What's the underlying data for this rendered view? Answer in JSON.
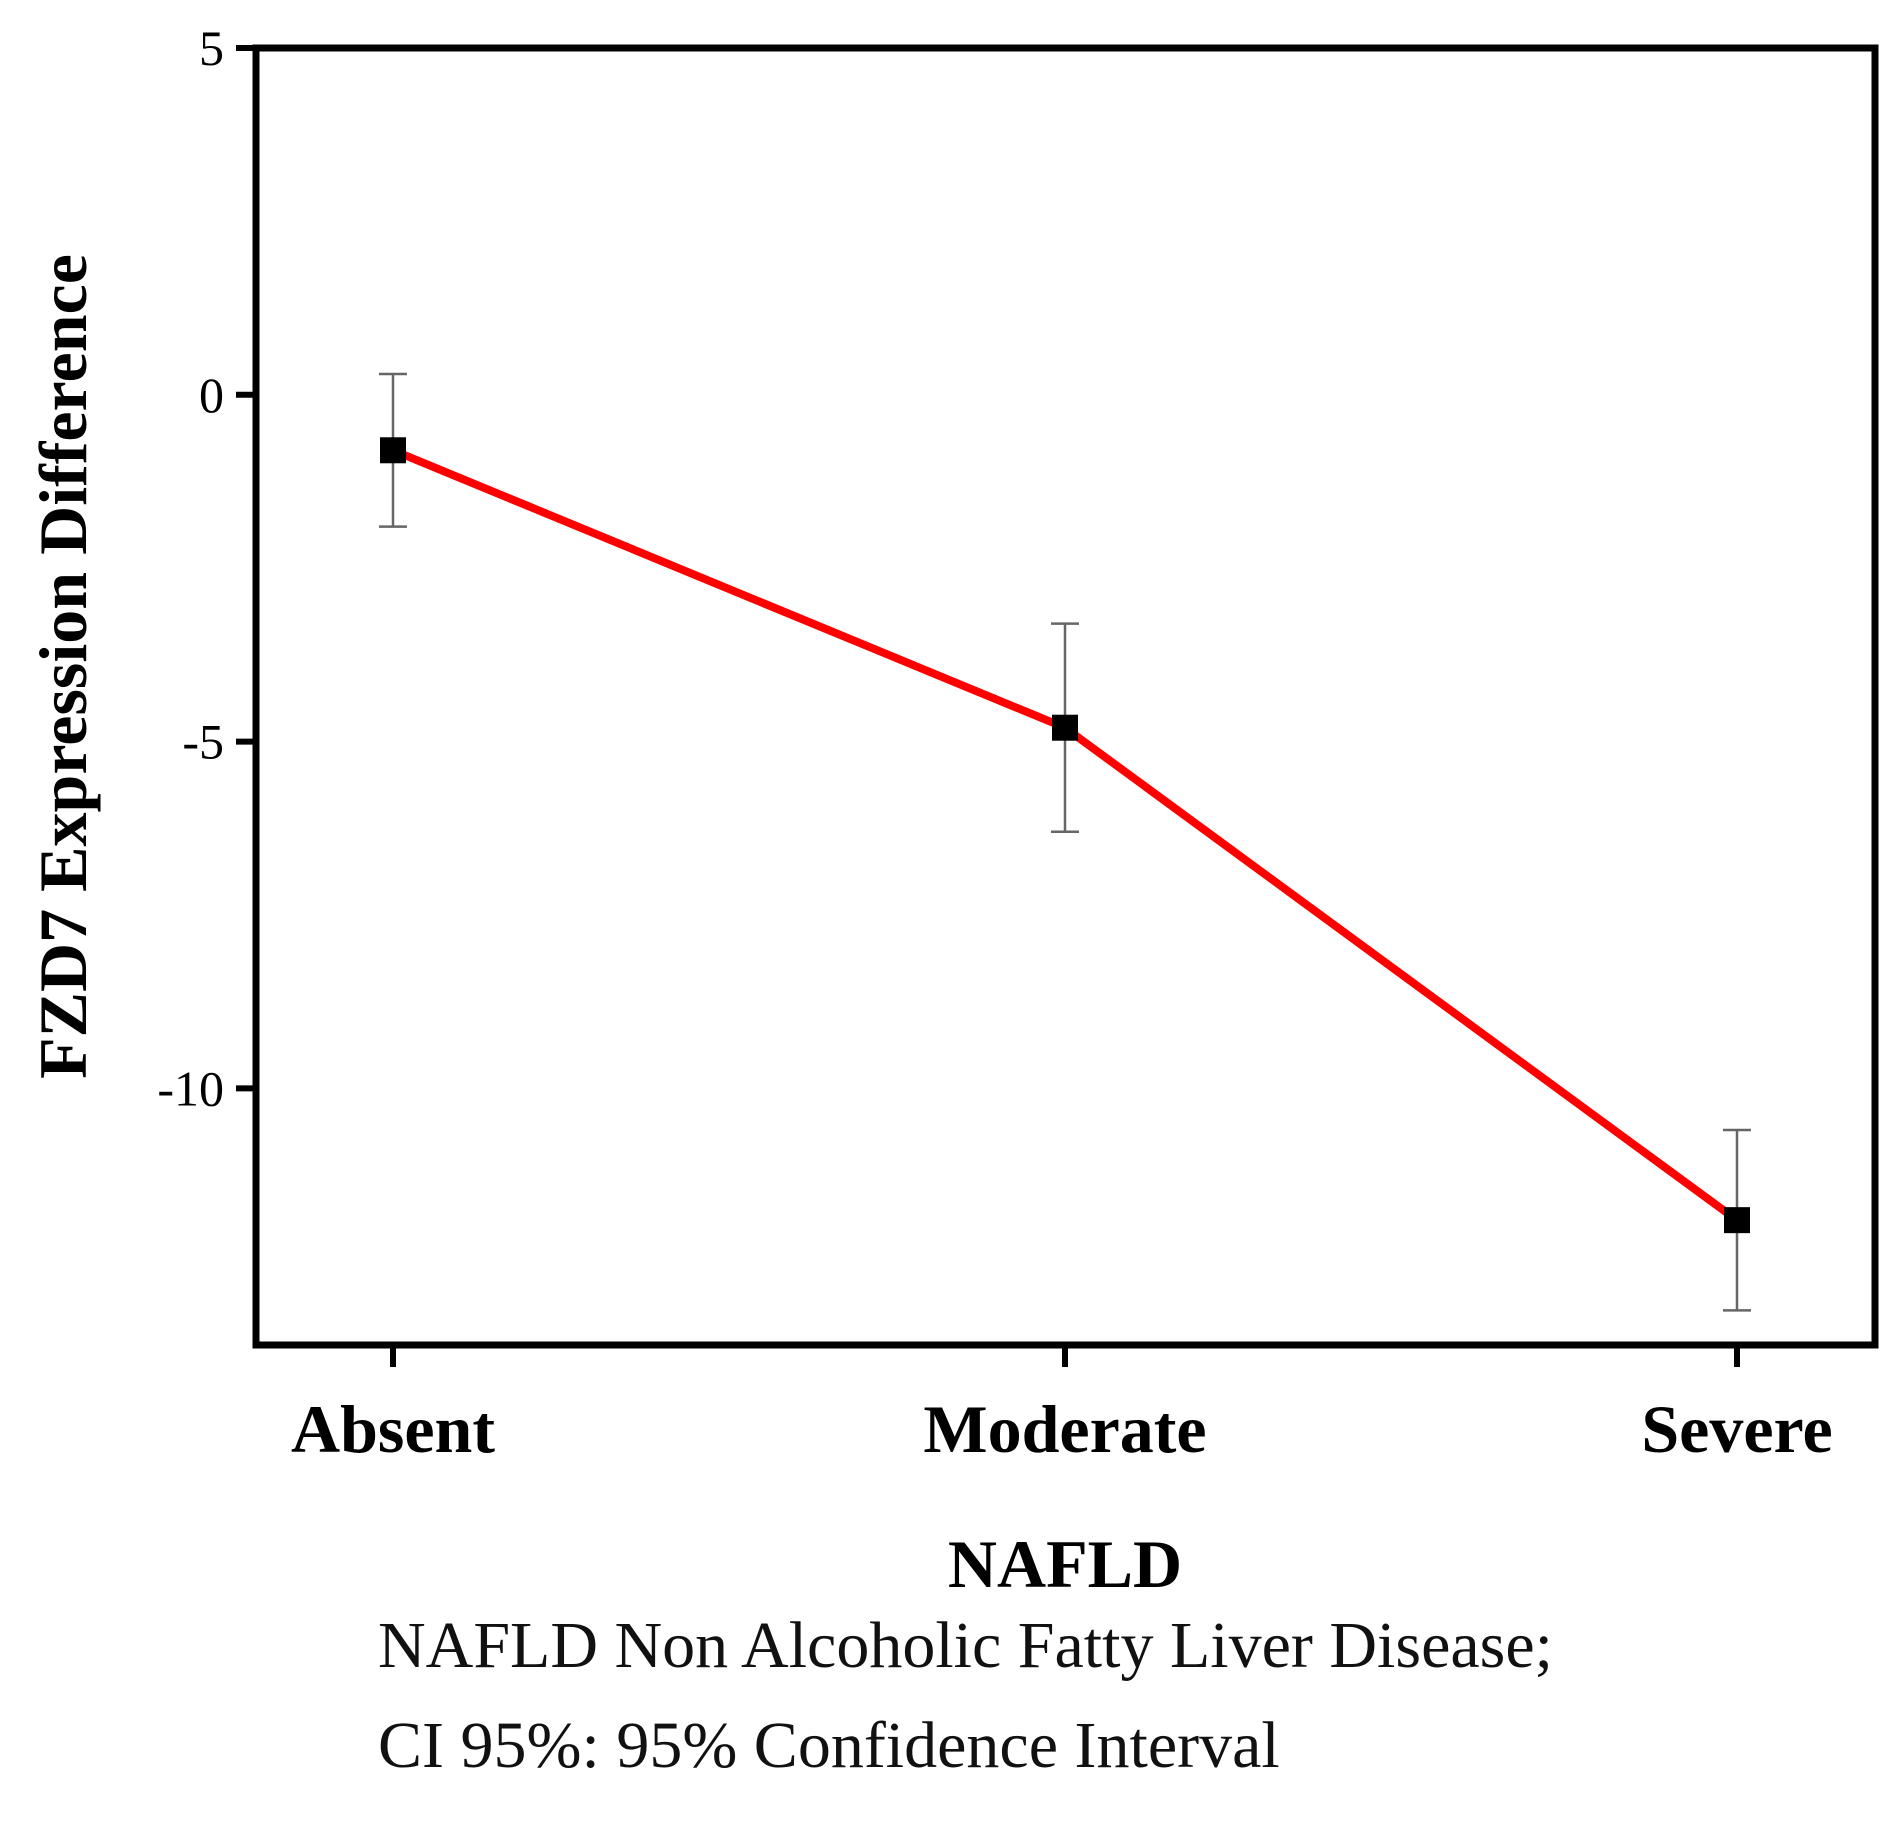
{
  "chart_data": {
    "type": "line",
    "categories": [
      "Absent",
      "Moderate",
      "Severe"
    ],
    "series": [
      {
        "values": [
          -0.8,
          -4.8,
          -11.9
        ],
        "ci_lower": [
          -1.9,
          -6.3,
          -13.2
        ],
        "ci_upper": [
          0.3,
          -3.3,
          -10.6
        ],
        "color": "#ff0000"
      }
    ],
    "xlabel": "NAFLD",
    "ylabel": "FZD7 Expression Difference",
    "ylim": [
      -13.7,
      5
    ],
    "yticks": [
      5,
      0,
      -5,
      -10
    ],
    "grid": false,
    "legend": "none"
  },
  "footnote": {
    "line1": "NAFLD Non Alcoholic Fatty Liver Disease;",
    "line2": "CI 95%: 95% Confidence Interval"
  }
}
